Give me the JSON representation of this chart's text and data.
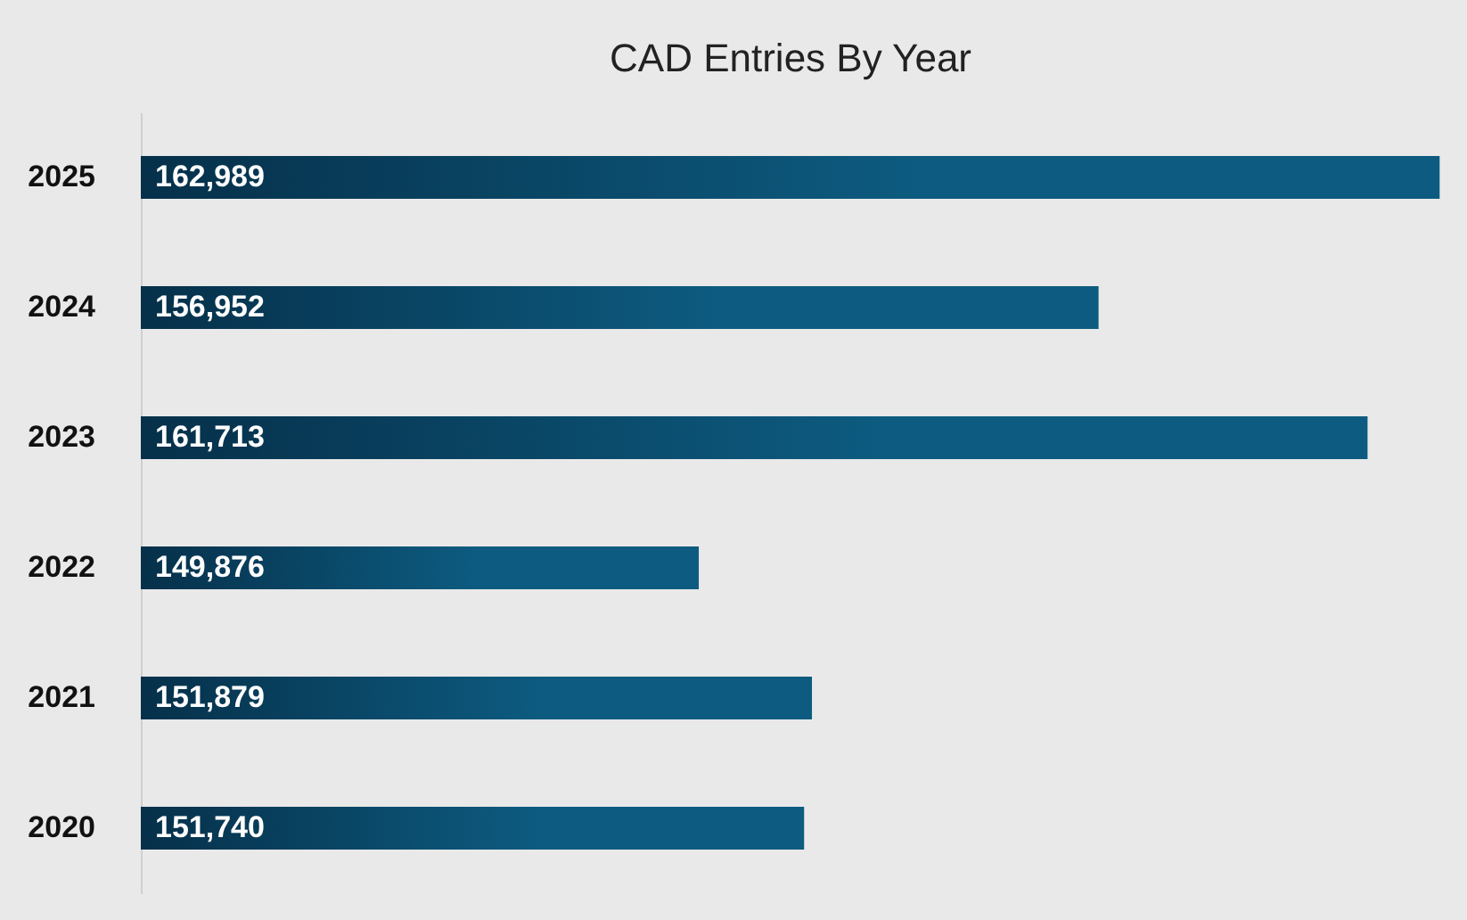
{
  "chart_data": {
    "type": "bar",
    "orientation": "horizontal",
    "title": "CAD Entries By Year",
    "categories": [
      "2025",
      "2024",
      "2023",
      "2022",
      "2021",
      "2020"
    ],
    "values": [
      162989,
      156952,
      161713,
      149876,
      151879,
      151740
    ],
    "value_labels": [
      "162,989",
      "156,952",
      "161,713",
      "149,876",
      "151,879",
      "151,740"
    ],
    "color": "#0d5b80",
    "xlim": [
      140000,
      163000
    ],
    "grid": false,
    "tick_labels": "y"
  }
}
